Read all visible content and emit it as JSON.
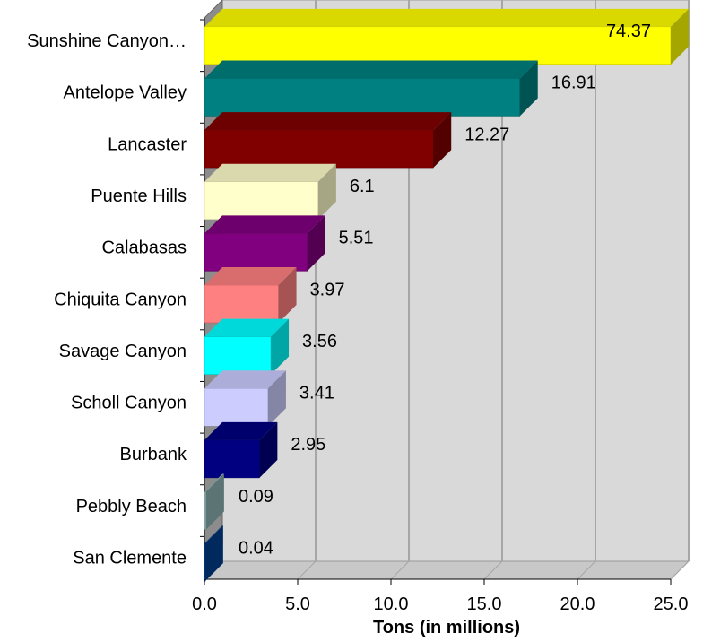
{
  "chart_data": {
    "type": "bar",
    "orientation": "horizontal",
    "style": "3d",
    "categories": [
      "Sunshine Canyon…",
      "Antelope Valley",
      "Lancaster",
      "Puente Hills",
      "Calabasas",
      "Chiquita Canyon",
      "Savage Canyon",
      "Scholl Canyon",
      "Burbank",
      "Pebbly Beach",
      "San Clemente"
    ],
    "values": [
      74.37,
      16.91,
      12.27,
      6.1,
      5.51,
      3.97,
      3.56,
      3.41,
      2.95,
      0.09,
      0.04
    ],
    "value_labels": [
      "74.37",
      "16.91",
      "12.27",
      "6.1",
      "5.51",
      "3.97",
      "3.56",
      "3.41",
      "2.95",
      "0.09",
      "0.04"
    ],
    "colors": [
      "#ffff00",
      "#008080",
      "#800000",
      "#ffffcc",
      "#800080",
      "#ff8080",
      "#00ffff",
      "#ccccff",
      "#000080",
      "#8fb3b3",
      "#003f8f"
    ],
    "xlabel": "Tons (in millions)",
    "ylabel": "",
    "xlim": [
      0,
      25
    ],
    "xticks": [
      "0.0",
      "5.0",
      "10.0",
      "15.0",
      "20.0",
      "25.0"
    ],
    "grid": true,
    "legend": "none"
  }
}
